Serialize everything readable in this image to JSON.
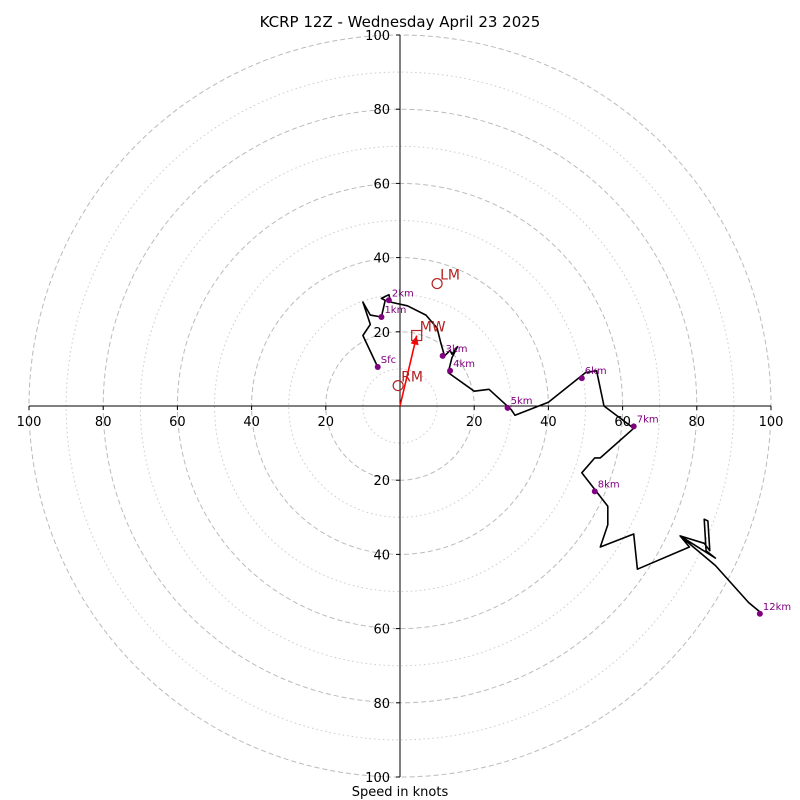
{
  "chart_data": {
    "type": "line",
    "title": "KCRP 12Z - Wednesday April 23 2025",
    "xlabel": "Speed in knots",
    "xlim": [
      -100,
      100
    ],
    "ylim": [
      -100,
      100
    ],
    "rings_major": [
      20,
      40,
      60,
      80,
      100
    ],
    "rings_minor": [
      10,
      30,
      50,
      70,
      90
    ],
    "ticks": {
      "x_left": [
        "100",
        "80",
        "60",
        "40",
        "20"
      ],
      "x_right": [
        "20",
        "40",
        "60",
        "80",
        "100"
      ],
      "y_up": [
        "20",
        "40",
        "60",
        "80",
        "100"
      ],
      "y_down": [
        "20",
        "40",
        "60",
        "80",
        "100"
      ]
    },
    "colors": {
      "trace": "#000000",
      "points": "#800080",
      "motion": "#b22222",
      "arrow": "#ff0000",
      "grid_major": "#bbbbbb",
      "grid_minor": "#cccccc"
    },
    "trace": [
      [
        -6,
        10.5
      ],
      [
        -10,
        19
      ],
      [
        -8,
        22
      ],
      [
        -10,
        28
      ],
      [
        -8,
        24.5
      ],
      [
        -5,
        24
      ],
      [
        -4,
        28.5
      ],
      [
        -5,
        29
      ],
      [
        -3,
        30
      ],
      [
        -2.5,
        28
      ],
      [
        2,
        27
      ],
      [
        7,
        24.5
      ],
      [
        10,
        21
      ],
      [
        11,
        17
      ],
      [
        12,
        13.5
      ],
      [
        13.5,
        15
      ],
      [
        14,
        14
      ],
      [
        15.5,
        16
      ],
      [
        14,
        13
      ],
      [
        13,
        9
      ],
      [
        20,
        4
      ],
      [
        24,
        4.5
      ],
      [
        30,
        -1
      ],
      [
        31,
        -2.5
      ],
      [
        40,
        1
      ],
      [
        50,
        9
      ],
      [
        53,
        9.5
      ],
      [
        55,
        0
      ],
      [
        63,
        -6
      ],
      [
        54,
        -14
      ],
      [
        52.5,
        -14
      ],
      [
        49,
        -18
      ],
      [
        56,
        -27
      ],
      [
        56,
        -32
      ],
      [
        54,
        -38
      ],
      [
        63,
        -34.5
      ],
      [
        64,
        -44
      ],
      [
        78,
        -38
      ],
      [
        75.5,
        -35
      ],
      [
        85,
        -41
      ],
      [
        82.5,
        -39
      ],
      [
        82,
        -30.5
      ],
      [
        83,
        -31
      ],
      [
        83.5,
        -39
      ],
      [
        82,
        -37
      ],
      [
        75.5,
        -35
      ],
      [
        85,
        -43
      ],
      [
        94,
        -53
      ],
      [
        97,
        -55.5
      ]
    ],
    "points": [
      {
        "label": "Sfc",
        "u": -6,
        "v": 10.5
      },
      {
        "label": "1km",
        "u": -5,
        "v": 24
      },
      {
        "label": "2km",
        "u": -3,
        "v": 28.5
      },
      {
        "label": "3km",
        "u": 11.5,
        "v": 13.5
      },
      {
        "label": "4km",
        "u": 13.5,
        "v": 9.5
      },
      {
        "label": "5km",
        "u": 29,
        "v": -0.5
      },
      {
        "label": "6km",
        "u": 49,
        "v": 7.5
      },
      {
        "label": "7km",
        "u": 63,
        "v": -5.5
      },
      {
        "label": "8km",
        "u": 52.5,
        "v": -23
      },
      {
        "label": "12km",
        "u": 97,
        "v": -56
      }
    ],
    "storm_motion": [
      {
        "label": "LM",
        "u": 10,
        "v": 33,
        "marker": "circle"
      },
      {
        "label": "MW",
        "u": 4.5,
        "v": 19,
        "marker": "square"
      },
      {
        "label": "RM",
        "u": -0.5,
        "v": 5.5,
        "marker": "circle"
      }
    ],
    "shear_arrow": {
      "from": [
        0,
        0
      ],
      "to": [
        4.5,
        19
      ]
    }
  }
}
